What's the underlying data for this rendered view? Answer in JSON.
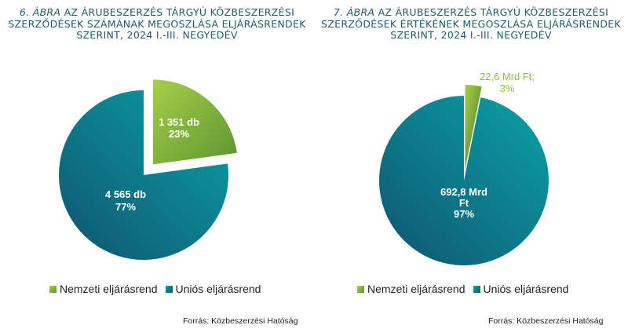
{
  "colors": {
    "nemzeti_light": "#a7cf4a",
    "nemzeti_dark": "#5b9531",
    "unios_light": "#0ba2a6",
    "unios_dark": "#0f5470",
    "title": "#1e5a6b"
  },
  "legend": {
    "nemzeti": "Nemzeti eljárásrend",
    "unios": "Uniós eljárásrend"
  },
  "source": "Forrás: Közbeszerzési Hatóság",
  "chart_data": [
    {
      "type": "pie",
      "title_num": "6. ÁBRA",
      "title_line1": "AZ ÁRUBESZERZÉS TÁRGYÚ KÖZBESZERZÉSI",
      "title_line2": "SZERZŐDÉSEK SZÁMÁNAK MEGOSZLÁSA ELJÁRÁSRENDEK",
      "title_line3": "SZERINT, 2024 I.-III. NEGYEDÉV",
      "slices": [
        {
          "name": "Nemzeti eljárásrend",
          "value": 1351,
          "percent": 23,
          "label_value": "1 351 db",
          "label_pct": "23%",
          "exploded": true
        },
        {
          "name": "Uniós eljárásrend",
          "value": 4565,
          "percent": 77,
          "label_value": "4 565 db",
          "label_pct": "77%",
          "exploded": false
        }
      ]
    },
    {
      "type": "pie",
      "title_num": "7. ÁBRA",
      "title_line1": "AZ ÁRUBESZERZÉS TÁRGYÚ KÖZBESZERZÉSI",
      "title_line2": "SZERZŐDÉSEK ÉRTÉKÉNEK MEGOSZLÁSA ELJÁRÁSRENDEK",
      "title_line3": "SZERINT, 2024 I.-III. NEGYEDÉV",
      "slices": [
        {
          "name": "Nemzeti eljárásrend",
          "value": 22.6,
          "percent": 3,
          "label_value": "22,6 Mrd Ft;",
          "label_pct": "3%",
          "exploded": true
        },
        {
          "name": "Uniós eljárásrend",
          "value": 692.8,
          "percent": 97,
          "label_lines": [
            "692,8 Mrd",
            "Ft"
          ],
          "label_pct": "97%",
          "exploded": false
        }
      ]
    }
  ]
}
